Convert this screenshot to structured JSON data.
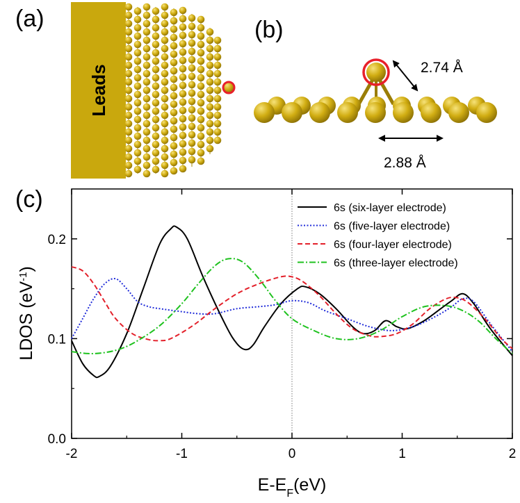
{
  "panels": {
    "a": {
      "label": "(a)",
      "leads_label": "Leads",
      "atom_color": "#c9a80d",
      "highlight_color": "#e8202a"
    },
    "b": {
      "label": "(b)",
      "bond_length_top": "2.74 Å",
      "bond_length_bottom": "2.88 Å",
      "atom_color": "#c9a80d",
      "highlight_color": "#e8202a"
    },
    "c": {
      "label": "(c)"
    }
  },
  "chart_data": {
    "type": "line",
    "title": "",
    "xlabel_main": "E-E",
    "xlabel_sub": "F",
    "xlabel_unit": "(eV)",
    "ylabel_main": "LDOS (eV",
    "ylabel_sup": "-1",
    "ylabel_close": ")",
    "xlim": [
      -2,
      2
    ],
    "ylim": [
      0,
      0.25
    ],
    "xticks": [
      -2,
      -1,
      0,
      1,
      2
    ],
    "xtick_labels": [
      "-2",
      "-1",
      "0",
      "1",
      "2"
    ],
    "yticks": [
      0,
      0.1,
      0.2
    ],
    "ytick_labels": [
      "0.0",
      "0.1",
      "0.2"
    ],
    "fermi_line_x": 0,
    "legend_position": "top-right",
    "series": [
      {
        "name": "6s (six-layer electrode)",
        "color": "#000000",
        "dash": "",
        "x": [
          -2.0,
          -1.9,
          -1.8,
          -1.75,
          -1.65,
          -1.5,
          -1.35,
          -1.2,
          -1.1,
          -1.05,
          -0.95,
          -0.8,
          -0.6,
          -0.5,
          -0.42,
          -0.35,
          -0.25,
          -0.1,
          0.05,
          0.12,
          0.25,
          0.4,
          0.55,
          0.65,
          0.75,
          0.85,
          0.95,
          1.05,
          1.2,
          1.35,
          1.45,
          1.55,
          1.65,
          1.8,
          2.0
        ],
        "y": [
          0.098,
          0.075,
          0.063,
          0.062,
          0.072,
          0.105,
          0.15,
          0.195,
          0.21,
          0.212,
          0.2,
          0.16,
          0.113,
          0.095,
          0.089,
          0.094,
          0.112,
          0.135,
          0.15,
          0.152,
          0.145,
          0.13,
          0.112,
          0.105,
          0.108,
          0.118,
          0.112,
          0.11,
          0.118,
          0.13,
          0.138,
          0.145,
          0.135,
          0.11,
          0.083
        ]
      },
      {
        "name": "6s (five-layer electrode)",
        "color": "#1f2bd9",
        "dash": "2 2.5",
        "x": [
          -2.0,
          -1.9,
          -1.8,
          -1.7,
          -1.6,
          -1.5,
          -1.4,
          -1.3,
          -1.2,
          -1.0,
          -0.85,
          -0.7,
          -0.5,
          -0.3,
          -0.15,
          0.0,
          0.15,
          0.3,
          0.5,
          0.7,
          0.9,
          1.1,
          1.3,
          1.45,
          1.55,
          1.65,
          1.8,
          2.0
        ],
        "y": [
          0.1,
          0.12,
          0.14,
          0.155,
          0.16,
          0.15,
          0.137,
          0.132,
          0.13,
          0.127,
          0.125,
          0.125,
          0.13,
          0.132,
          0.134,
          0.138,
          0.136,
          0.128,
          0.12,
          0.112,
          0.108,
          0.112,
          0.122,
          0.132,
          0.14,
          0.137,
          0.115,
          0.087
        ]
      },
      {
        "name": "6s (four-layer electrode)",
        "color": "#e3202a",
        "dash": "7 4",
        "x": [
          -2.0,
          -1.9,
          -1.8,
          -1.7,
          -1.6,
          -1.45,
          -1.3,
          -1.2,
          -1.1,
          -0.9,
          -0.7,
          -0.5,
          -0.3,
          -0.1,
          0.0,
          0.1,
          0.25,
          0.4,
          0.55,
          0.7,
          0.8,
          0.95,
          1.1,
          1.25,
          1.4,
          1.5,
          1.6,
          1.75,
          1.9,
          2.0
        ],
        "y": [
          0.172,
          0.168,
          0.155,
          0.137,
          0.12,
          0.105,
          0.099,
          0.098,
          0.1,
          0.113,
          0.13,
          0.145,
          0.155,
          0.162,
          0.162,
          0.157,
          0.143,
          0.125,
          0.11,
          0.103,
          0.102,
          0.105,
          0.115,
          0.13,
          0.14,
          0.141,
          0.136,
          0.12,
          0.1,
          0.09
        ]
      },
      {
        "name": "6s (three-layer electrode)",
        "color": "#1fc21f",
        "dash": "9 3 2 3",
        "x": [
          -2.0,
          -1.85,
          -1.7,
          -1.55,
          -1.4,
          -1.2,
          -1.0,
          -0.85,
          -0.7,
          -0.58,
          -0.45,
          -0.3,
          -0.15,
          0.0,
          0.2,
          0.4,
          0.6,
          0.8,
          1.0,
          1.2,
          1.4,
          1.55,
          1.7,
          1.85,
          2.0
        ],
        "y": [
          0.087,
          0.085,
          0.086,
          0.09,
          0.098,
          0.113,
          0.135,
          0.155,
          0.173,
          0.18,
          0.177,
          0.16,
          0.138,
          0.12,
          0.108,
          0.1,
          0.1,
          0.108,
          0.122,
          0.132,
          0.133,
          0.128,
          0.117,
          0.1,
          0.085
        ]
      }
    ]
  }
}
